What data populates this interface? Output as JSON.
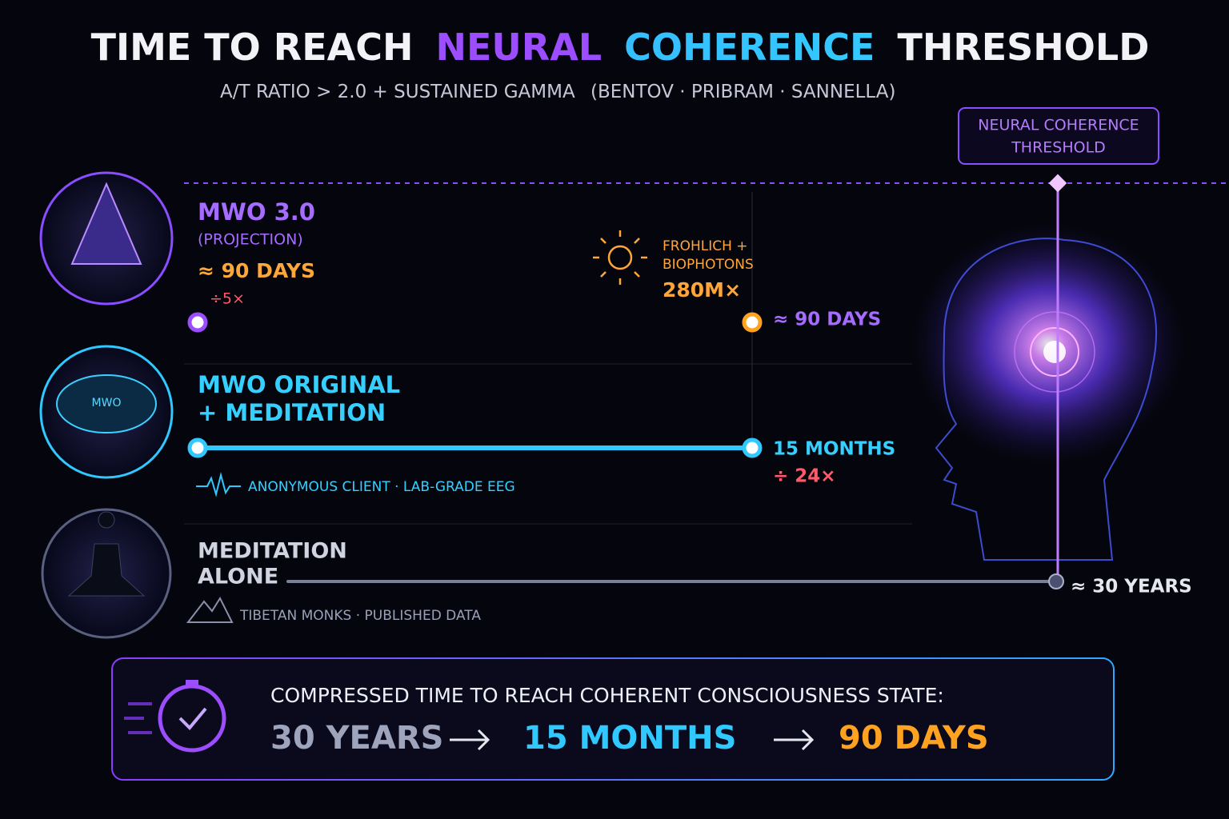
{
  "header": {
    "title": {
      "lead": "TIME TO REACH",
      "highlight_a": "NEURAL",
      "highlight_b": "COHERENCE",
      "tail": "THRESHOLD"
    },
    "subtitle": "A/T RATIO > 2.0 + SUSTAINED GAMMA",
    "source": "(BENTOV · PRIBRAM · SANNELLA)"
  },
  "threshold_label": [
    "NEURAL COHERENCE",
    "THRESHOLD"
  ],
  "rows": [
    {
      "name": [
        "MWO 3.0"
      ],
      "sub": "(PROJECTION)",
      "estimate": "≈ 90 DAYS",
      "factor": "÷5×",
      "end_label": "≈ 90 DAYS",
      "annotation": {
        "lines": [
          "FROHLICH +",
          "BIOPHOTONS"
        ],
        "value": "280M×"
      }
    },
    {
      "name": [
        "MWO ORIGINAL",
        "+ MEDITATION"
      ],
      "icon_label": "MWO",
      "end_label": "15 MONTHS",
      "factor": "÷ 24×",
      "note": "ANONYMOUS CLIENT · LAB-GRADE EEG"
    },
    {
      "name": [
        "MEDITATION",
        "ALONE"
      ],
      "end_label": "≈ 30 YEARS",
      "note": "TIBETAN MONKS · PUBLISHED DATA"
    }
  ],
  "footer": {
    "heading": "COMPRESSED TIME TO REACH COHERENT CONSCIOUSNESS STATE:",
    "steps": [
      "30 YEARS",
      "15 MONTHS",
      "90 DAYS"
    ]
  }
}
